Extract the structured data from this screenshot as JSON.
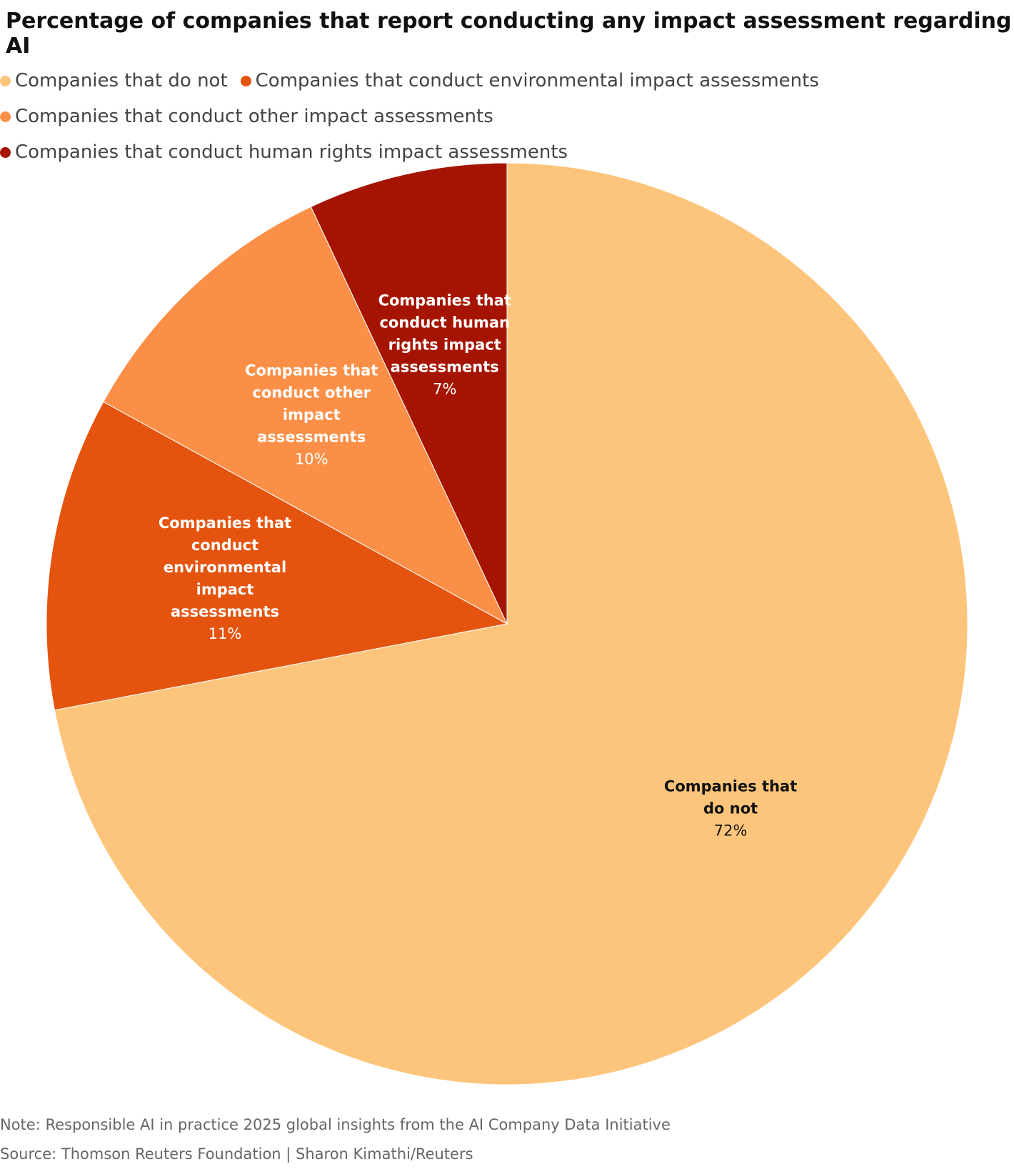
{
  "chart_data": {
    "type": "pie",
    "title": "Percentage of companies that report conducting any impact assessment regarding AI",
    "categories": [
      "Companies that do not",
      "Companies that conduct environmental impact assessments",
      "Companies that conduct other impact assessments",
      "Companies that conduct human rights impact assessments"
    ],
    "values": [
      72,
      11,
      10,
      7
    ],
    "value_labels": [
      "72%",
      "11%",
      "10%",
      "7%"
    ],
    "colors": [
      "#fdc57b",
      "#e4540f",
      "#fb8f47",
      "#a51400"
    ],
    "note": "Note: Responsible AI in practice 2025 global insights from the AI Company Data Initiative",
    "source": "Source: Thomson Reuters Foundation | Sharon Kimathi/Reuters"
  }
}
